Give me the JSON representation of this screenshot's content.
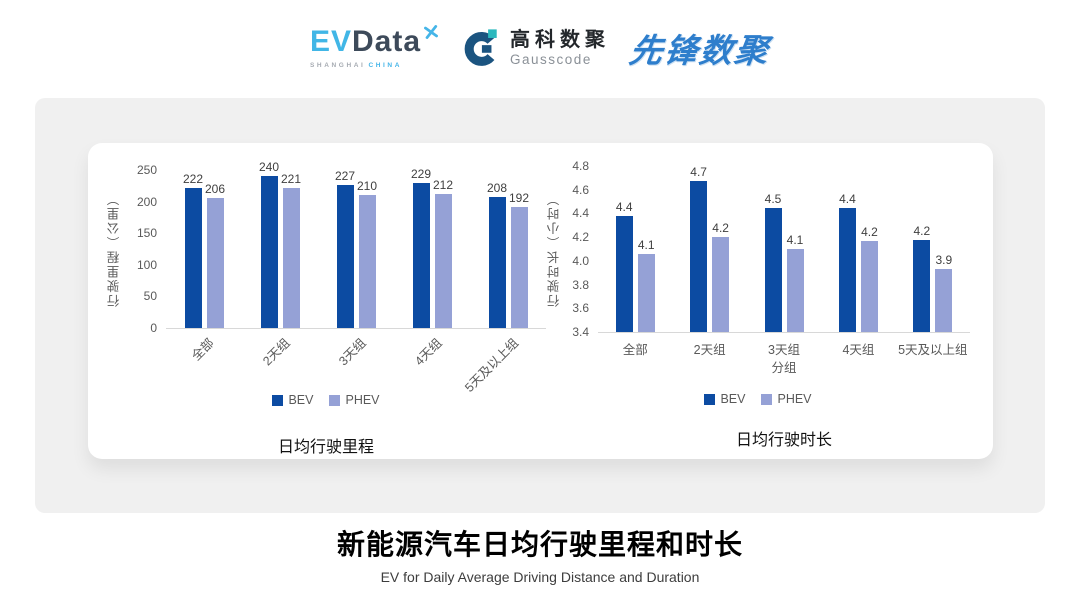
{
  "header": {
    "evdata": {
      "ev": "EV",
      "data": "Data",
      "sub_left": "SHANGHAI",
      "sub_right": "CHINA"
    },
    "gausscode": {
      "name_cn": "高科数聚",
      "name_en": "Gausscode"
    },
    "xianfeng": {
      "text": "先锋数聚"
    }
  },
  "colors": {
    "bev": "#0C4BA2",
    "phev": "#95A1D6",
    "axis_text": "#595959",
    "data_label": "#3F3F3F",
    "panel_bg": "#F0F0F0",
    "evdata_blue": "#41B6E6",
    "evdata_dark": "#3D4A5A",
    "gausscode_navy": "#1B5480",
    "gausscode_teal": "#2BB8BE",
    "xianfeng_blue": "#2E7ECC"
  },
  "chart_data": [
    {
      "type": "bar",
      "title": "日均行驶里程",
      "ylabel": "行驶里程（公里）",
      "xlabel": "",
      "categories": [
        "全部",
        "2天组",
        "3天组",
        "4天组",
        "5天及以上组"
      ],
      "series": [
        {
          "name": "BEV",
          "color": "#0C4BA2",
          "values": [
            222,
            240,
            227,
            229,
            208
          ],
          "labels": [
            "222",
            "240",
            "227",
            "229",
            "208"
          ]
        },
        {
          "name": "PHEV",
          "color": "#95A1D6",
          "values": [
            206,
            221,
            210,
            212,
            192
          ],
          "labels": [
            "206",
            "221",
            "210",
            "212",
            "192"
          ]
        }
      ],
      "ylim": [
        0,
        250
      ],
      "ytick_values": [
        250,
        200,
        150,
        100,
        50,
        0
      ],
      "ytick_labels": [
        "250",
        "200",
        "150",
        "100",
        "50",
        "0"
      ],
      "rotate_x_labels": true,
      "grid": false,
      "legend_position": "bottom"
    },
    {
      "type": "bar",
      "title": "日均行驶时长",
      "ylabel": "行驶时长（小时）",
      "xlabel": "分组",
      "categories": [
        "全部",
        "2天组",
        "3天组",
        "4天组",
        "5天及以上组"
      ],
      "series": [
        {
          "name": "BEV",
          "color": "#0C4BA2",
          "values": [
            4.4,
            4.7,
            4.5,
            4.4,
            4.2
          ],
          "bar_values": [
            4.38,
            4.67,
            4.45,
            4.45,
            4.18
          ],
          "labels": [
            "4.4",
            "4.7",
            "4.5",
            "4.4",
            "4.2"
          ]
        },
        {
          "name": "PHEV",
          "color": "#95A1D6",
          "values": [
            4.1,
            4.2,
            4.1,
            4.2,
            3.9
          ],
          "bar_values": [
            4.06,
            4.2,
            4.1,
            4.17,
            3.93
          ],
          "labels": [
            "4.1",
            "4.2",
            "4.1",
            "4.2",
            "3.9"
          ]
        }
      ],
      "ylim": [
        3.4,
        4.8
      ],
      "ytick_values": [
        4.8,
        4.6,
        4.4,
        4.2,
        4.0,
        3.8,
        3.6,
        3.4
      ],
      "ytick_labels": [
        "4.8",
        "4.6",
        "4.4",
        "4.2",
        "4.0",
        "3.8",
        "3.6",
        "3.4"
      ],
      "rotate_x_labels": false,
      "grid": false,
      "legend_position": "bottom"
    }
  ],
  "footer": {
    "title": "新能源汽车日均行驶里程和时长",
    "subtitle": "EV for Daily Average Driving Distance and Duration"
  }
}
